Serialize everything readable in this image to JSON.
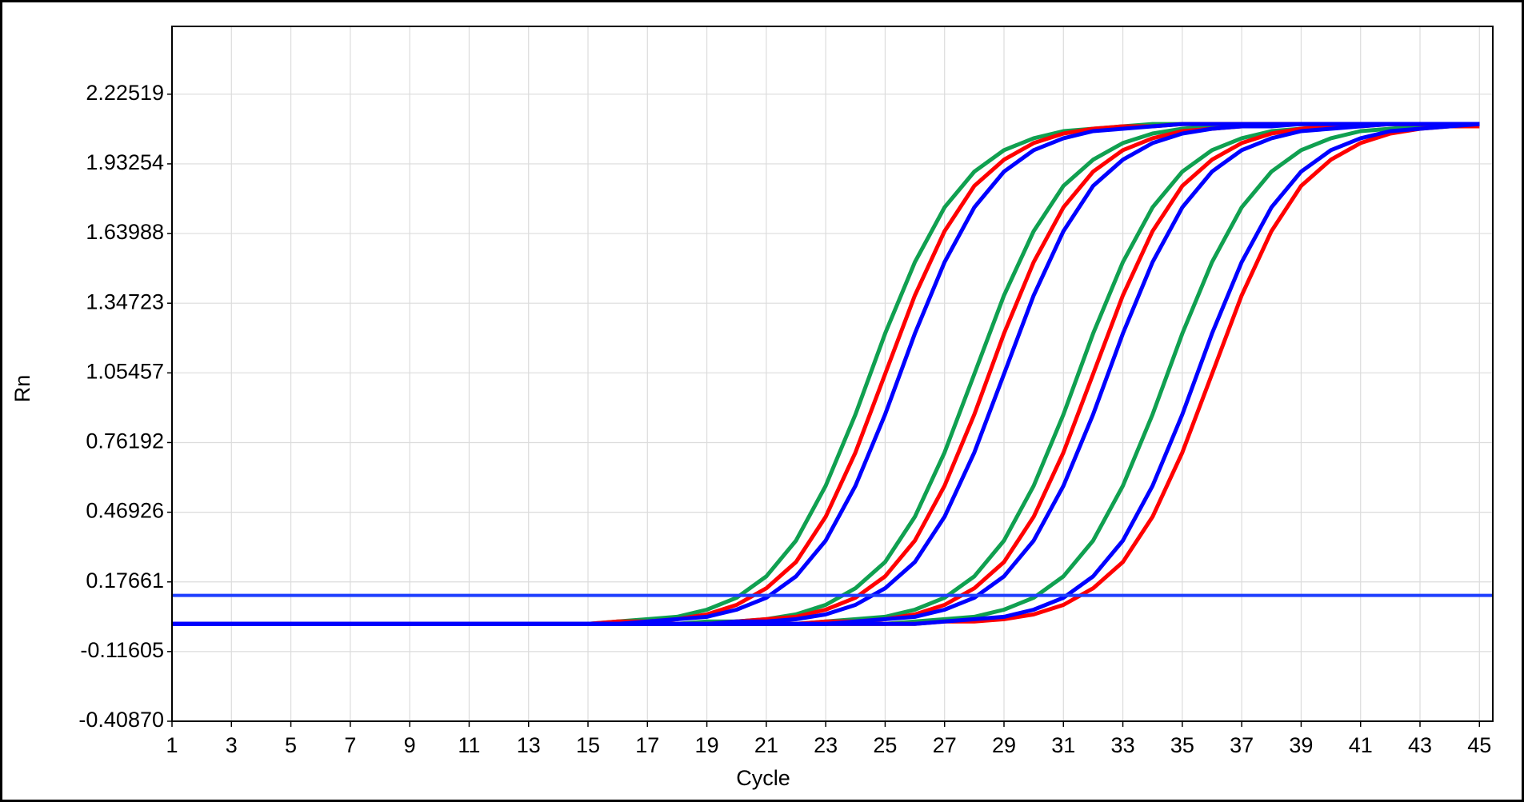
{
  "chart_data": {
    "type": "line",
    "xlabel": "Cycle",
    "ylabel": "Rn",
    "x": [
      1,
      14,
      15,
      16,
      17,
      18,
      19,
      20,
      21,
      22,
      23,
      24,
      25,
      26,
      27,
      28,
      29,
      30,
      31,
      32,
      33,
      34,
      35,
      36,
      37,
      38,
      39,
      40,
      41,
      42,
      43,
      44,
      45
    ],
    "xlim": [
      1,
      45.45
    ],
    "ylim": [
      -0.4087,
      2.51
    ],
    "xticks": [
      1,
      3,
      5,
      7,
      9,
      11,
      13,
      15,
      17,
      19,
      21,
      23,
      25,
      27,
      29,
      31,
      33,
      35,
      37,
      39,
      41,
      43,
      45
    ],
    "yticks": [
      {
        "value": -0.4087,
        "label": "-0.40870"
      },
      -0.11605,
      0.17661,
      0.46926,
      0.76192,
      1.05457,
      1.34723,
      1.63988,
      1.93254,
      2.22519
    ],
    "grid": true,
    "threshold": 0.12,
    "threshold_color": "#1f3fff",
    "series": [
      {
        "color": "#10a050",
        "values": [
          0,
          0,
          0,
          0.01,
          0.02,
          0.03,
          0.06,
          0.11,
          0.2,
          0.35,
          0.58,
          0.88,
          1.22,
          1.52,
          1.75,
          1.9,
          1.99,
          2.04,
          2.07,
          2.08,
          2.09,
          2.1,
          2.1,
          2.1,
          2.1,
          2.1,
          2.1,
          2.1,
          2.1,
          2.1,
          2.1,
          2.1,
          2.1
        ]
      },
      {
        "color": "#10a050",
        "values": [
          0,
          0,
          0,
          0,
          0,
          0,
          0.01,
          0.01,
          0.02,
          0.04,
          0.08,
          0.15,
          0.26,
          0.45,
          0.72,
          1.05,
          1.38,
          1.65,
          1.84,
          1.95,
          2.02,
          2.06,
          2.08,
          2.09,
          2.09,
          2.1,
          2.1,
          2.1,
          2.1,
          2.1,
          2.1,
          2.1,
          2.1
        ]
      },
      {
        "color": "#10a050",
        "values": [
          0,
          0,
          0,
          0,
          0,
          0,
          0,
          0,
          0,
          0,
          0.01,
          0.02,
          0.03,
          0.06,
          0.11,
          0.2,
          0.35,
          0.58,
          0.88,
          1.22,
          1.52,
          1.75,
          1.9,
          1.99,
          2.04,
          2.07,
          2.08,
          2.09,
          2.1,
          2.1,
          2.1,
          2.1,
          2.1
        ]
      },
      {
        "color": "#10a050",
        "values": [
          0,
          0,
          0,
          0,
          0,
          0,
          0,
          0,
          0,
          0,
          0,
          0,
          0,
          0.01,
          0.02,
          0.03,
          0.06,
          0.11,
          0.2,
          0.35,
          0.58,
          0.88,
          1.22,
          1.52,
          1.75,
          1.9,
          1.99,
          2.04,
          2.07,
          2.08,
          2.09,
          2.1,
          2.1
        ]
      },
      {
        "color": "#ff0000",
        "values": [
          0,
          0,
          0,
          0.01,
          0.01,
          0.02,
          0.04,
          0.08,
          0.15,
          0.26,
          0.45,
          0.72,
          1.05,
          1.38,
          1.65,
          1.84,
          1.95,
          2.02,
          2.06,
          2.08,
          2.09,
          2.09,
          2.1,
          2.1,
          2.1,
          2.1,
          2.1,
          2.1,
          2.1,
          2.1,
          2.1,
          2.1,
          2.1
        ]
      },
      {
        "color": "#ff0000",
        "values": [
          0,
          0,
          0,
          0,
          0,
          0,
          0,
          0.01,
          0.02,
          0.03,
          0.06,
          0.11,
          0.2,
          0.35,
          0.58,
          0.88,
          1.22,
          1.52,
          1.75,
          1.9,
          1.99,
          2.04,
          2.07,
          2.08,
          2.09,
          2.1,
          2.1,
          2.1,
          2.1,
          2.1,
          2.1,
          2.1,
          2.1
        ]
      },
      {
        "color": "#ff0000",
        "values": [
          0,
          0,
          0,
          0,
          0,
          0,
          0,
          0,
          0,
          0,
          0.01,
          0.01,
          0.02,
          0.04,
          0.08,
          0.15,
          0.26,
          0.45,
          0.72,
          1.05,
          1.38,
          1.65,
          1.84,
          1.95,
          2.02,
          2.06,
          2.08,
          2.09,
          2.09,
          2.1,
          2.1,
          2.1,
          2.1
        ]
      },
      {
        "color": "#ff0000",
        "values": [
          0,
          0,
          0,
          0,
          0,
          0,
          0,
          0,
          0,
          0,
          0,
          0,
          0,
          0,
          0.01,
          0.01,
          0.02,
          0.04,
          0.08,
          0.15,
          0.26,
          0.45,
          0.72,
          1.05,
          1.38,
          1.65,
          1.84,
          1.95,
          2.02,
          2.06,
          2.08,
          2.09,
          2.09
        ]
      },
      {
        "color": "#0000ff",
        "values": [
          0,
          0,
          0,
          0,
          0.01,
          0.02,
          0.03,
          0.06,
          0.11,
          0.2,
          0.35,
          0.58,
          0.88,
          1.22,
          1.52,
          1.75,
          1.9,
          1.99,
          2.04,
          2.07,
          2.08,
          2.09,
          2.1,
          2.1,
          2.1,
          2.1,
          2.1,
          2.1,
          2.1,
          2.1,
          2.1,
          2.1,
          2.1
        ]
      },
      {
        "color": "#0000ff",
        "values": [
          0,
          0,
          0,
          0,
          0,
          0,
          0,
          0.01,
          0.01,
          0.02,
          0.04,
          0.08,
          0.15,
          0.26,
          0.45,
          0.72,
          1.05,
          1.38,
          1.65,
          1.84,
          1.95,
          2.02,
          2.06,
          2.08,
          2.09,
          2.09,
          2.1,
          2.1,
          2.1,
          2.1,
          2.1,
          2.1,
          2.1
        ]
      },
      {
        "color": "#0000ff",
        "values": [
          0,
          0,
          0,
          0,
          0,
          0,
          0,
          0,
          0,
          0,
          0,
          0.01,
          0.02,
          0.03,
          0.06,
          0.11,
          0.2,
          0.35,
          0.58,
          0.88,
          1.22,
          1.52,
          1.75,
          1.9,
          1.99,
          2.04,
          2.07,
          2.08,
          2.09,
          2.1,
          2.1,
          2.1,
          2.1
        ]
      },
      {
        "color": "#0000ff",
        "values": [
          0,
          0,
          0,
          0,
          0,
          0,
          0,
          0,
          0,
          0,
          0,
          0,
          0,
          0,
          0.01,
          0.02,
          0.03,
          0.06,
          0.11,
          0.2,
          0.35,
          0.58,
          0.88,
          1.22,
          1.52,
          1.75,
          1.9,
          1.99,
          2.04,
          2.07,
          2.08,
          2.09,
          2.1
        ]
      }
    ]
  }
}
